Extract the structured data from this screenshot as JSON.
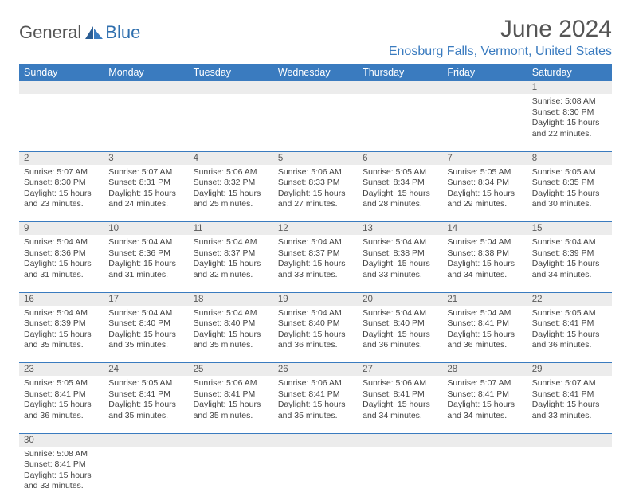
{
  "brand": {
    "part1": "General",
    "part2": "Blue"
  },
  "title": "June 2024",
  "location": "Enosburg Falls, Vermont, United States",
  "colors": {
    "header_bg": "#3a7bbf",
    "header_text": "#ffffff",
    "daynum_bg": "#ececec",
    "border": "#3a7bbf",
    "title_color": "#555555",
    "location_color": "#3a7bbf"
  },
  "day_headers": [
    "Sunday",
    "Monday",
    "Tuesday",
    "Wednesday",
    "Thursday",
    "Friday",
    "Saturday"
  ],
  "weeks": [
    {
      "nums": [
        "",
        "",
        "",
        "",
        "",
        "",
        "1"
      ],
      "cells": [
        null,
        null,
        null,
        null,
        null,
        null,
        {
          "sunrise": "Sunrise: 5:08 AM",
          "sunset": "Sunset: 8:30 PM",
          "day1": "Daylight: 15 hours",
          "day2": "and 22 minutes."
        }
      ]
    },
    {
      "nums": [
        "2",
        "3",
        "4",
        "5",
        "6",
        "7",
        "8"
      ],
      "cells": [
        {
          "sunrise": "Sunrise: 5:07 AM",
          "sunset": "Sunset: 8:30 PM",
          "day1": "Daylight: 15 hours",
          "day2": "and 23 minutes."
        },
        {
          "sunrise": "Sunrise: 5:07 AM",
          "sunset": "Sunset: 8:31 PM",
          "day1": "Daylight: 15 hours",
          "day2": "and 24 minutes."
        },
        {
          "sunrise": "Sunrise: 5:06 AM",
          "sunset": "Sunset: 8:32 PM",
          "day1": "Daylight: 15 hours",
          "day2": "and 25 minutes."
        },
        {
          "sunrise": "Sunrise: 5:06 AM",
          "sunset": "Sunset: 8:33 PM",
          "day1": "Daylight: 15 hours",
          "day2": "and 27 minutes."
        },
        {
          "sunrise": "Sunrise: 5:05 AM",
          "sunset": "Sunset: 8:34 PM",
          "day1": "Daylight: 15 hours",
          "day2": "and 28 minutes."
        },
        {
          "sunrise": "Sunrise: 5:05 AM",
          "sunset": "Sunset: 8:34 PM",
          "day1": "Daylight: 15 hours",
          "day2": "and 29 minutes."
        },
        {
          "sunrise": "Sunrise: 5:05 AM",
          "sunset": "Sunset: 8:35 PM",
          "day1": "Daylight: 15 hours",
          "day2": "and 30 minutes."
        }
      ]
    },
    {
      "nums": [
        "9",
        "10",
        "11",
        "12",
        "13",
        "14",
        "15"
      ],
      "cells": [
        {
          "sunrise": "Sunrise: 5:04 AM",
          "sunset": "Sunset: 8:36 PM",
          "day1": "Daylight: 15 hours",
          "day2": "and 31 minutes."
        },
        {
          "sunrise": "Sunrise: 5:04 AM",
          "sunset": "Sunset: 8:36 PM",
          "day1": "Daylight: 15 hours",
          "day2": "and 31 minutes."
        },
        {
          "sunrise": "Sunrise: 5:04 AM",
          "sunset": "Sunset: 8:37 PM",
          "day1": "Daylight: 15 hours",
          "day2": "and 32 minutes."
        },
        {
          "sunrise": "Sunrise: 5:04 AM",
          "sunset": "Sunset: 8:37 PM",
          "day1": "Daylight: 15 hours",
          "day2": "and 33 minutes."
        },
        {
          "sunrise": "Sunrise: 5:04 AM",
          "sunset": "Sunset: 8:38 PM",
          "day1": "Daylight: 15 hours",
          "day2": "and 33 minutes."
        },
        {
          "sunrise": "Sunrise: 5:04 AM",
          "sunset": "Sunset: 8:38 PM",
          "day1": "Daylight: 15 hours",
          "day2": "and 34 minutes."
        },
        {
          "sunrise": "Sunrise: 5:04 AM",
          "sunset": "Sunset: 8:39 PM",
          "day1": "Daylight: 15 hours",
          "day2": "and 34 minutes."
        }
      ]
    },
    {
      "nums": [
        "16",
        "17",
        "18",
        "19",
        "20",
        "21",
        "22"
      ],
      "cells": [
        {
          "sunrise": "Sunrise: 5:04 AM",
          "sunset": "Sunset: 8:39 PM",
          "day1": "Daylight: 15 hours",
          "day2": "and 35 minutes."
        },
        {
          "sunrise": "Sunrise: 5:04 AM",
          "sunset": "Sunset: 8:40 PM",
          "day1": "Daylight: 15 hours",
          "day2": "and 35 minutes."
        },
        {
          "sunrise": "Sunrise: 5:04 AM",
          "sunset": "Sunset: 8:40 PM",
          "day1": "Daylight: 15 hours",
          "day2": "and 35 minutes."
        },
        {
          "sunrise": "Sunrise: 5:04 AM",
          "sunset": "Sunset: 8:40 PM",
          "day1": "Daylight: 15 hours",
          "day2": "and 36 minutes."
        },
        {
          "sunrise": "Sunrise: 5:04 AM",
          "sunset": "Sunset: 8:40 PM",
          "day1": "Daylight: 15 hours",
          "day2": "and 36 minutes."
        },
        {
          "sunrise": "Sunrise: 5:04 AM",
          "sunset": "Sunset: 8:41 PM",
          "day1": "Daylight: 15 hours",
          "day2": "and 36 minutes."
        },
        {
          "sunrise": "Sunrise: 5:05 AM",
          "sunset": "Sunset: 8:41 PM",
          "day1": "Daylight: 15 hours",
          "day2": "and 36 minutes."
        }
      ]
    },
    {
      "nums": [
        "23",
        "24",
        "25",
        "26",
        "27",
        "28",
        "29"
      ],
      "cells": [
        {
          "sunrise": "Sunrise: 5:05 AM",
          "sunset": "Sunset: 8:41 PM",
          "day1": "Daylight: 15 hours",
          "day2": "and 36 minutes."
        },
        {
          "sunrise": "Sunrise: 5:05 AM",
          "sunset": "Sunset: 8:41 PM",
          "day1": "Daylight: 15 hours",
          "day2": "and 35 minutes."
        },
        {
          "sunrise": "Sunrise: 5:06 AM",
          "sunset": "Sunset: 8:41 PM",
          "day1": "Daylight: 15 hours",
          "day2": "and 35 minutes."
        },
        {
          "sunrise": "Sunrise: 5:06 AM",
          "sunset": "Sunset: 8:41 PM",
          "day1": "Daylight: 15 hours",
          "day2": "and 35 minutes."
        },
        {
          "sunrise": "Sunrise: 5:06 AM",
          "sunset": "Sunset: 8:41 PM",
          "day1": "Daylight: 15 hours",
          "day2": "and 34 minutes."
        },
        {
          "sunrise": "Sunrise: 5:07 AM",
          "sunset": "Sunset: 8:41 PM",
          "day1": "Daylight: 15 hours",
          "day2": "and 34 minutes."
        },
        {
          "sunrise": "Sunrise: 5:07 AM",
          "sunset": "Sunset: 8:41 PM",
          "day1": "Daylight: 15 hours",
          "day2": "and 33 minutes."
        }
      ]
    },
    {
      "nums": [
        "30",
        "",
        "",
        "",
        "",
        "",
        ""
      ],
      "cells": [
        {
          "sunrise": "Sunrise: 5:08 AM",
          "sunset": "Sunset: 8:41 PM",
          "day1": "Daylight: 15 hours",
          "day2": "and 33 minutes."
        },
        null,
        null,
        null,
        null,
        null,
        null
      ]
    }
  ]
}
